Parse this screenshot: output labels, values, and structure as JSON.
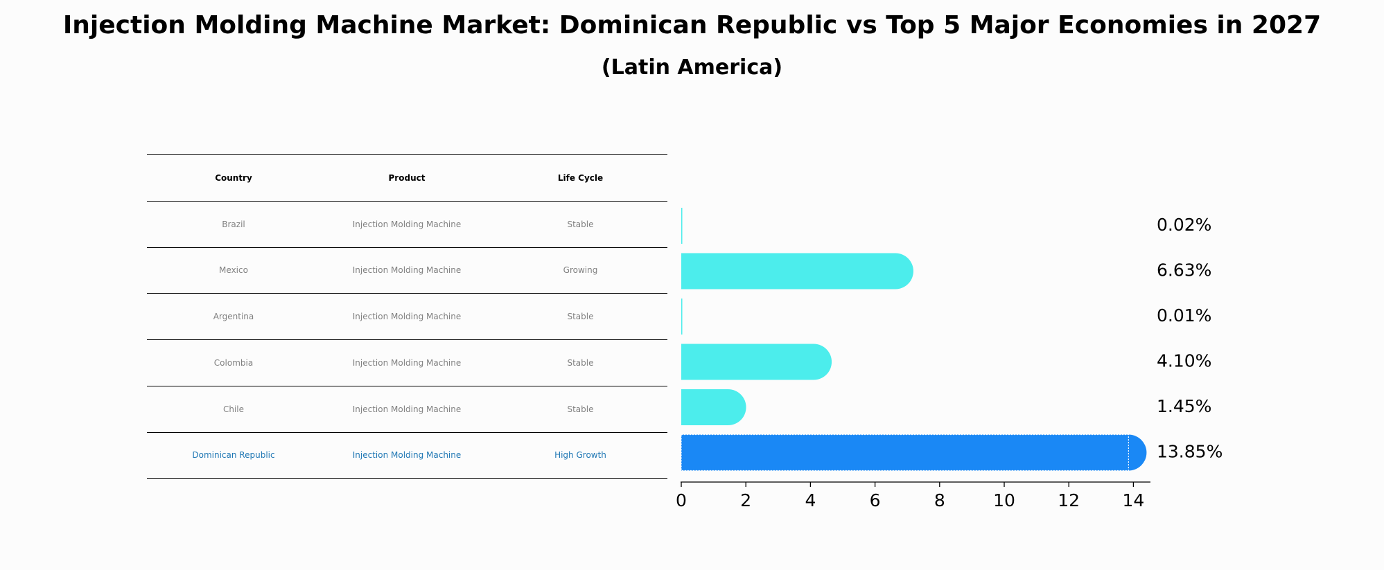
{
  "title": "Injection Molding Machine Market: Dominican Republic vs Top 5 Major Economies in 2027",
  "subtitle": "(Latin America)",
  "table": {
    "headers": [
      "Country",
      "Product",
      "Life Cycle"
    ],
    "rows": [
      [
        "Brazil",
        "Injection Molding Machine",
        "Stable"
      ],
      [
        "Mexico",
        "Injection Molding Machine",
        "Growing"
      ],
      [
        "Argentina",
        "Injection Molding Machine",
        "Stable"
      ],
      [
        "Colombia",
        "Injection Molding Machine",
        "Stable"
      ],
      [
        "Chile",
        "Injection Molding Machine",
        "Stable"
      ],
      [
        "Dominican Republic",
        "Injection Molding Machine",
        "High Growth"
      ]
    ],
    "highlight_row": 5
  },
  "colors": {
    "bar": "#4cedec",
    "highlight_bar": "#1a88f5",
    "highlight_text": "#1f77b4",
    "table_text": "#808080"
  },
  "chart_data": {
    "type": "bar",
    "orientation": "horizontal",
    "categories": [
      "Brazil",
      "Mexico",
      "Argentina",
      "Colombia",
      "Chile",
      "Dominican Republic"
    ],
    "values": [
      0.02,
      6.63,
      0.01,
      4.1,
      1.45,
      13.85
    ],
    "data_labels": [
      "0.02%",
      "6.63%",
      "0.01%",
      "4.10%",
      "1.45%",
      "13.85%"
    ],
    "xlim": [
      0,
      14.5
    ],
    "xticks": [
      0,
      2,
      4,
      6,
      8,
      10,
      12,
      14
    ],
    "grid": false,
    "bar_style": "rounded-end"
  }
}
